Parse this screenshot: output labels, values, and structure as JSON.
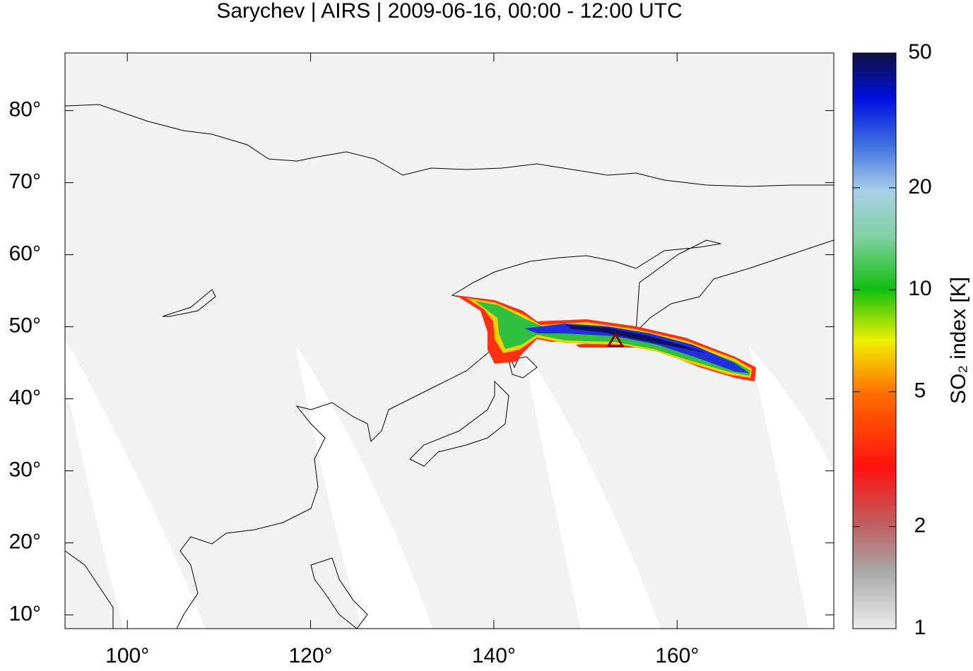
{
  "chart_data": {
    "type": "map",
    "title": "Sarychev | AIRS | 2009-06-16, 00:00 - 12:00 UTC",
    "xlim": [
      93.2,
      177.1
    ],
    "ylim": [
      8.1,
      88.0
    ],
    "xticks": [
      {
        "value": 100,
        "label": "100°"
      },
      {
        "value": 120,
        "label": "120°"
      },
      {
        "value": 140,
        "label": "140°"
      },
      {
        "value": 160,
        "label": "160°"
      }
    ],
    "yticks": [
      {
        "value": 10,
        "label": "10°"
      },
      {
        "value": 20,
        "label": "20°"
      },
      {
        "value": 30,
        "label": "30°"
      },
      {
        "value": 40,
        "label": "40°"
      },
      {
        "value": 50,
        "label": "50°"
      },
      {
        "value": 60,
        "label": "60°"
      },
      {
        "value": 70,
        "label": "70°"
      },
      {
        "value": 80,
        "label": "80°"
      }
    ],
    "colorbar": {
      "label": "SO₂ index [K]",
      "lim": [
        1,
        50
      ],
      "ticks": [
        1,
        2,
        5,
        10,
        20,
        50
      ],
      "log": true
    }
  }
}
